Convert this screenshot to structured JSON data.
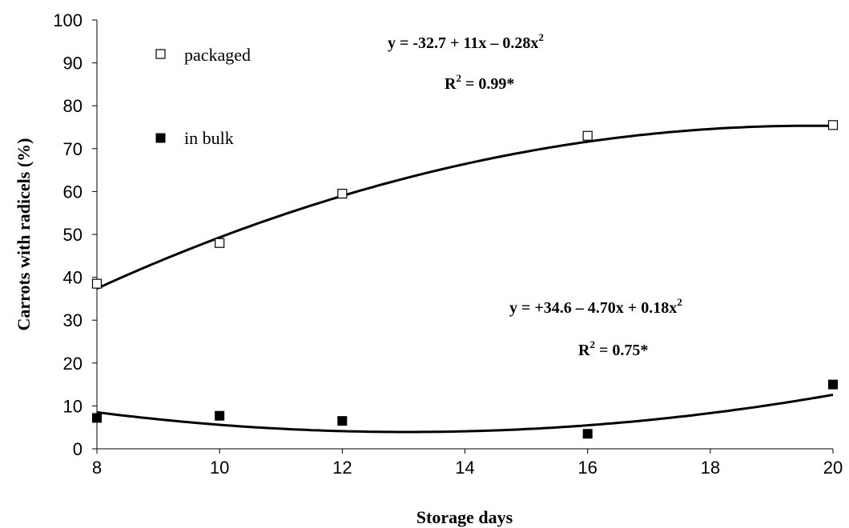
{
  "chart_data": {
    "type": "scatter",
    "xlabel": "Storage days",
    "ylabel": "Carrots with radicels (%)",
    "xlim": [
      8,
      20
    ],
    "ylim": [
      0,
      100
    ],
    "xticks": [
      "8",
      "10",
      "12",
      "14",
      "16",
      "18",
      "20"
    ],
    "yticks": [
      "0",
      "10",
      "20",
      "30",
      "40",
      "50",
      "60",
      "70",
      "80",
      "90",
      "100"
    ],
    "grid": false,
    "legend": "top-left",
    "series": [
      {
        "name": "packaged",
        "marker": "open-square",
        "color": "#000000",
        "x": [
          8,
          10,
          12,
          16,
          20
        ],
        "y": [
          38.5,
          48,
          59.5,
          73,
          75.5
        ],
        "fit": {
          "a": -32.7,
          "b": 11,
          "c": -0.28
        },
        "equation": {
          "lhs": "y = -32.7 + 11x – 0.28x",
          "exp": "2"
        },
        "r2": {
          "lhs": "R",
          "exp": "2",
          "rhs": " = 0.99*"
        }
      },
      {
        "name": "in bulk",
        "marker": "filled-square",
        "color": "#000000",
        "x": [
          8,
          10,
          12,
          16,
          20
        ],
        "y": [
          7.2,
          7.7,
          6.5,
          3.5,
          15
        ],
        "fit": {
          "a": 34.6,
          "b": -4.7,
          "c": 0.18
        },
        "equation": {
          "lhs": "y = +34.6 – 4.70x + 0.18x",
          "exp": "2"
        },
        "r2": {
          "lhs": "R",
          "exp": "2",
          "rhs": " = 0.75*"
        }
      }
    ]
  }
}
